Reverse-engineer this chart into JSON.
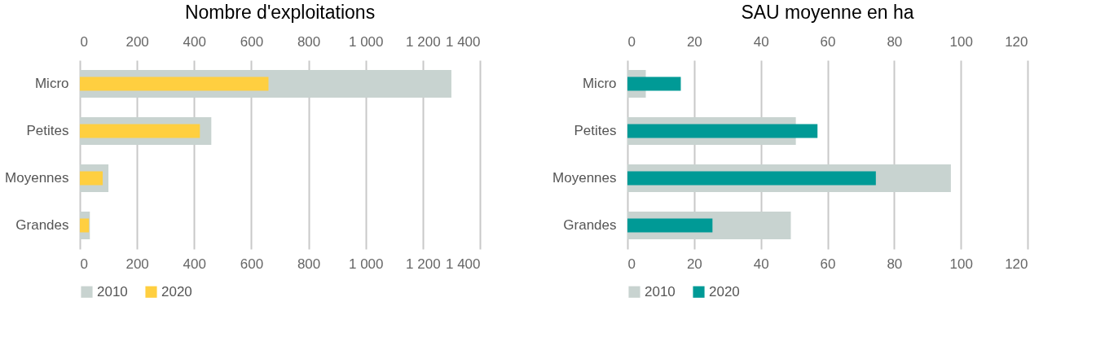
{
  "chart_data": [
    {
      "type": "bar",
      "title": "Nombre d'exploitations",
      "orientation": "horizontal",
      "categories": [
        "Micro",
        "Petites",
        "Moyennes",
        "Grandes"
      ],
      "series": [
        {
          "name": "2010",
          "color": "#c8d3d0",
          "values": [
            1300,
            460,
            100,
            35
          ]
        },
        {
          "name": "2020",
          "color": "#ffcf40",
          "values": [
            660,
            420,
            80,
            32
          ]
        }
      ],
      "xlim": [
        0,
        1400
      ],
      "xticks": [
        0,
        200,
        400,
        600,
        800,
        {
          "value": 1000,
          "label": "1 000"
        },
        {
          "value": 1200,
          "label": "1 200"
        },
        {
          "value": 1400,
          "label": "1 400"
        }
      ],
      "x2lim": [
        0,
        1400
      ],
      "x2ticks": [
        0,
        200,
        400,
        600,
        800,
        {
          "value": 1000,
          "label": "1 000"
        },
        {
          "value": 1200,
          "label": "1 200"
        },
        {
          "value": 1400,
          "label": "1 400"
        }
      ],
      "grid": "x",
      "legend": "bottom"
    },
    {
      "type": "bar",
      "title": "SAU  moyenne en ha",
      "orientation": "horizontal",
      "categories": [
        "Micro",
        "Petites",
        "Moyennes",
        "Grandes"
      ],
      "series": [
        {
          "name": "2010",
          "color": "#c8d3d0",
          "values": [
            5.5,
            50.5,
            97,
            49
          ]
        },
        {
          "name": "2020",
          "color": "#009a96",
          "values": [
            16,
            57,
            74.5,
            25.5
          ]
        }
      ],
      "xlim": [
        0,
        120
      ],
      "xticks": [
        0,
        20,
        40,
        60,
        80,
        100,
        120
      ],
      "x2lim": [
        0,
        120
      ],
      "x2ticks": [
        0,
        20,
        40,
        60,
        80,
        100,
        120
      ],
      "grid": "x",
      "legend": "bottom"
    }
  ]
}
